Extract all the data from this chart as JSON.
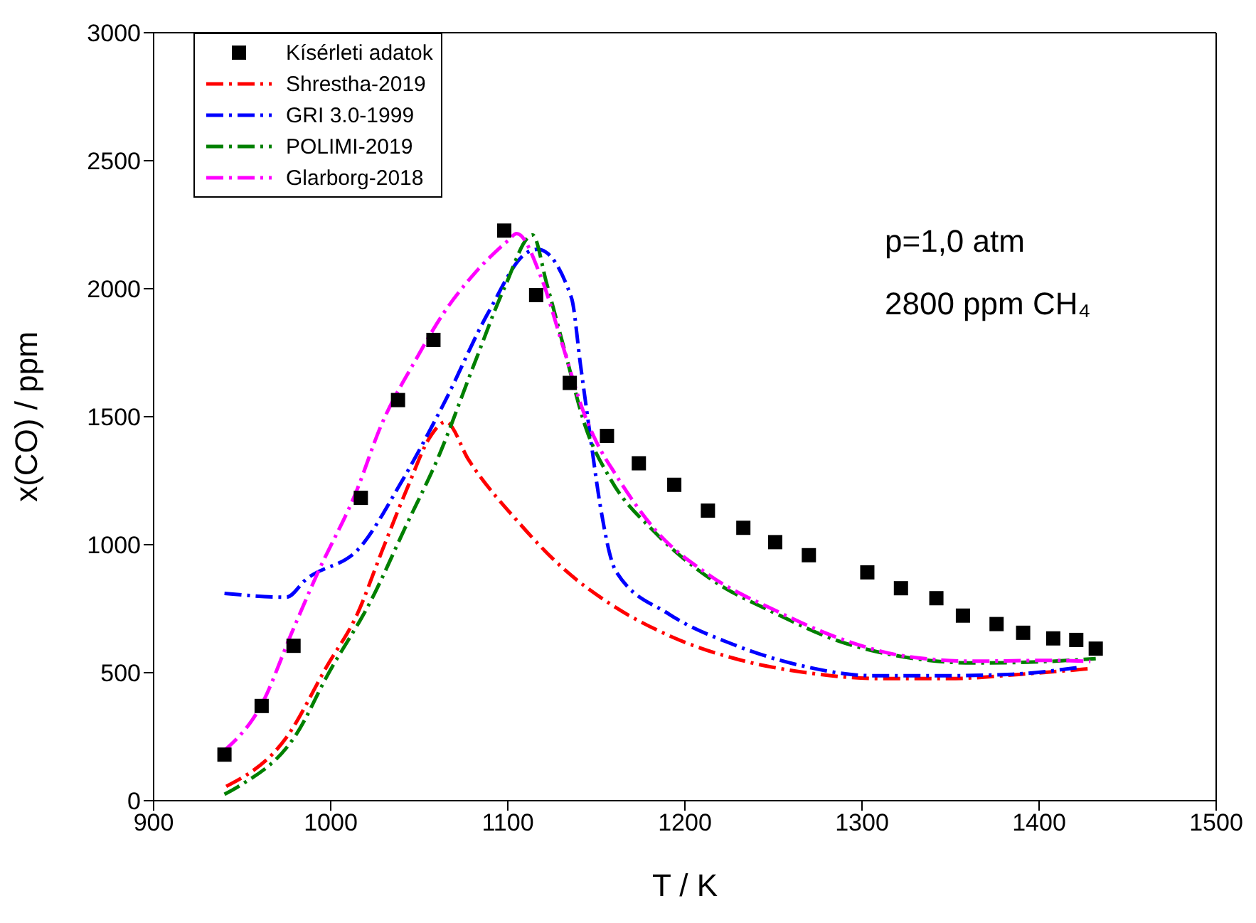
{
  "chart_data": {
    "type": "line",
    "xlabel": "T / K",
    "ylabel": "x(CO) / ppm",
    "xlim": [
      900,
      1500
    ],
    "xticks": [
      900,
      1000,
      1100,
      1200,
      1300,
      1400,
      1500
    ],
    "ylim": [
      0,
      3000
    ],
    "yticks": [
      0,
      500,
      1000,
      1500,
      2000,
      2500,
      3000
    ],
    "grid": false,
    "legend": "top left",
    "annotations": [
      "p=1,0 atm",
      "2800 ppm CH₄"
    ],
    "series": [
      {
        "name": "Kísérleti adatok",
        "type": "scatter",
        "marker": "square",
        "color": "#000000",
        "x": [
          940,
          961,
          979,
          1017,
          1038,
          1058,
          1098,
          1116,
          1135,
          1156,
          1174,
          1194,
          1213,
          1233,
          1251,
          1270,
          1303,
          1322,
          1342,
          1357,
          1376,
          1391,
          1408,
          1421,
          1432
        ],
        "values": [
          180,
          370,
          605,
          1183,
          1565,
          1800,
          2227,
          1975,
          1632,
          1425,
          1318,
          1234,
          1133,
          1066,
          1010,
          959,
          892,
          830,
          791,
          723,
          690,
          656,
          634,
          628,
          594
        ]
      },
      {
        "name": "Shrestha-2019",
        "line_style": "dashed",
        "marker": "none",
        "color": "#ff0000",
        "x": [
          941,
          975,
          998,
          1015,
          1029,
          1044,
          1056,
          1065,
          1078,
          1106,
          1131,
          1158,
          1193,
          1231,
          1270,
          1310,
          1349,
          1390,
          1429
        ],
        "values": [
          56,
          247,
          527,
          729,
          976,
          1234,
          1420,
          1480,
          1330,
          1088,
          909,
          768,
          639,
          550,
          499,
          477,
          477,
          494,
          516
        ]
      },
      {
        "name": "GRI 3.0-1999",
        "line_style": "dashed",
        "marker": "none",
        "color": "#0000ff",
        "x": [
          940,
          975,
          986,
          1017,
          1039,
          1064,
          1089,
          1111,
          1117,
          1136,
          1141,
          1147,
          1152,
          1161,
          1191,
          1227,
          1266,
          1307,
          1346,
          1385,
          1424
        ],
        "values": [
          810,
          795,
          864,
          993,
          1234,
          1553,
          1907,
          2142,
          2154,
          1963,
          1705,
          1402,
          1161,
          897,
          729,
          611,
          527,
          488,
          488,
          494,
          522
        ]
      },
      {
        "name": "POLIMI-2019",
        "line_style": "dashed",
        "marker": "none",
        "color": "#008000",
        "x": [
          940,
          948,
          981,
          998,
          1023,
          1042,
          1061,
          1081,
          1098,
          1114,
          1122,
          1132,
          1144,
          1158,
          1183,
          1214,
          1252,
          1285,
          1324,
          1363,
          1405,
          1432
        ],
        "values": [
          25,
          56,
          264,
          488,
          785,
          1066,
          1346,
          1705,
          2002,
          2210,
          2019,
          1761,
          1458,
          1256,
          1049,
          869,
          729,
          628,
          561,
          538,
          544,
          555
        ]
      },
      {
        "name": "Glarborg-2018",
        "line_style": "dashed",
        "marker": "none",
        "color": "#ff00ff",
        "x": [
          940,
          961,
          978,
          992,
          1015,
          1028,
          1048,
          1064,
          1081,
          1100,
          1105,
          1119,
          1131,
          1143,
          1150,
          1161,
          1183,
          1214,
          1252,
          1285,
          1324,
          1363,
          1405,
          1429
        ],
        "values": [
          196,
          376,
          656,
          880,
          1217,
          1458,
          1722,
          1907,
          2058,
          2187,
          2215,
          2041,
          1778,
          1514,
          1402,
          1273,
          1060,
          880,
          740,
          640,
          565,
          545,
          548,
          544
        ]
      }
    ]
  }
}
